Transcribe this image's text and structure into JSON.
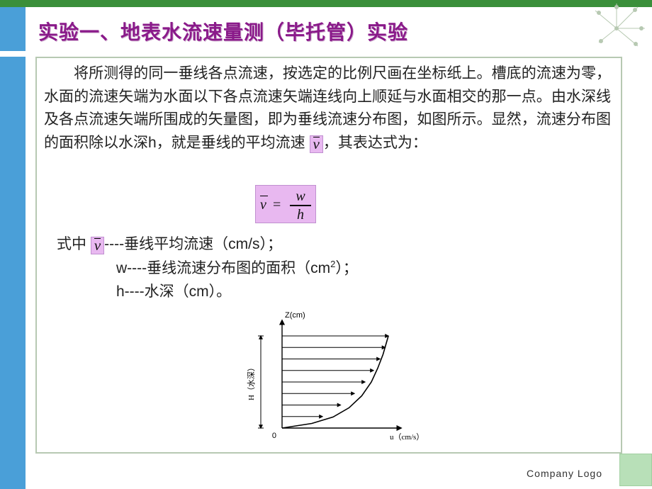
{
  "slide": {
    "title": "实验一、地表水流速量测（毕托管）实验",
    "title_color": "#8a1a8a",
    "title_fontsize": 28,
    "paragraph": "将所测得的同一垂线各点流速，按选定的比例尺画在坐标纸上。槽底的流速为零，水面的流速矢端为水面以下各点流速矢端连线向上顺延与水面相交的那一点。由水深线及各点流速矢端所围成的矢量图，即为垂线流速分布图，如图所示。显然，流速分布图的面积除以水深h，就是垂线的平均流速",
    "paragraph_tail": "，其表达式为：",
    "inline_symbol": "v",
    "formula": {
      "lhs": "v",
      "eq": "=",
      "num": "w",
      "den": "h",
      "box_bg": "#e8b8f0",
      "box_border": "#c090d0"
    },
    "definitions": {
      "prefix": "式中",
      "v_symbol": "v",
      "v_text": "----垂线平均流速（cm/s）；",
      "w_text": "w----垂线流速分布图的面积（cm",
      "w_sup": "2",
      "w_tail": "）；",
      "h_text": "h----水深（cm）。"
    },
    "footer": "Company  Logo"
  },
  "diagram": {
    "type": "line-profile",
    "x_label": "u（cm/s）",
    "y_label_top": "Z(cm)",
    "y_label_side": "H（水深）",
    "background": "#ffffff",
    "axis_color": "#000000",
    "arrow_color": "#000000",
    "origin_label": "0",
    "profile_points": [
      [
        0.0,
        0.0
      ],
      [
        0.28,
        0.05
      ],
      [
        0.48,
        0.12
      ],
      [
        0.63,
        0.22
      ],
      [
        0.75,
        0.35
      ],
      [
        0.84,
        0.5
      ],
      [
        0.9,
        0.65
      ],
      [
        0.95,
        0.8
      ],
      [
        0.98,
        0.92
      ],
      [
        1.0,
        1.0
      ]
    ],
    "top_extent": 1.0,
    "arrow_rows_y": [
      0.125,
      0.25,
      0.375,
      0.5,
      0.625,
      0.75,
      0.875,
      1.0
    ],
    "arrow_lengths": [
      0.38,
      0.55,
      0.68,
      0.78,
      0.86,
      0.92,
      0.97,
      1.0
    ],
    "x_range": [
      0,
      1.1
    ],
    "y_range": [
      0,
      1.18
    ],
    "line_width": 1.4,
    "font_size": 11
  },
  "theme": {
    "top_bar_color": "#3a8f3a",
    "left_bar_color": "#4a9fd8",
    "frame_border": "#b7c9b2",
    "corner_square": "#b8e0b8"
  }
}
